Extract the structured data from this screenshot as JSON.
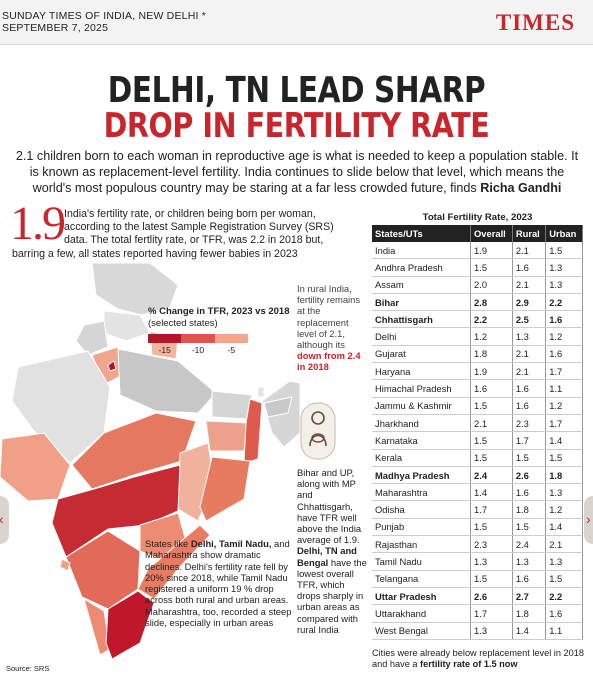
{
  "masthead": {
    "date_line1": "SUNDAY TIMES OF INDIA, NEW DELHI *",
    "date_line2": "SEPTEMBER 7, 2025",
    "brand": "TIMES"
  },
  "headline": {
    "line1": "DELHI, TN LEAD SHARP",
    "line2": "DROP IN FERTILITY RATE"
  },
  "intro": {
    "text": "2.1 children born to each woman in reproductive age is what is needed to keep a population stable. It is known as replacement-level fertility. India continues to slide below that level, which means the world's most populous country may be staring at a far less crowded future, finds",
    "author": "Richa Gandhi"
  },
  "lead": {
    "big_number": "1.9",
    "line1": "India's fertility rate, or children being born per woman,",
    "line2": "according to the latest Sample Registration Survey (SRS)",
    "line3": "data. The total fertlity rate, or TFR, was 2.2 in 2018 but,",
    "line4": "barring a few, all states reported having fewer babies in 2023"
  },
  "legend": {
    "title": "% Change in TFR, 2023 vs 2018",
    "subtitle": "(selected states)",
    "ticks": [
      "-15",
      "-10",
      "-5"
    ],
    "colors": [
      "#b3162a",
      "#e0534a",
      "#f4a58c"
    ]
  },
  "notes": {
    "rural_pre": "In rural India, fertility remains at the replacement level of 2.1, although its",
    "rural_bold": "down from 2.4 in 2018",
    "states_p1": "Bihar and UP, along with MP and Chhattisgarh, have TFR well above the India average of 1.9.",
    "states_bold": "Delhi, TN and Bengal",
    "states_p2": "have the lowest overall TFR, which drops sharply in urban areas as compared with rural India",
    "decline_p1": "States like",
    "decline_bold": "Delhi, Tamil Nadu,",
    "decline_p2": "and Maharashtra show dramatic declines. Delhi's fertility rate fell by 20% since 2018, while Tamil Nadu registered a uniform 19 % drop across both rural and urban areas. Maharashtra, too, recorded a steep slide, especially in urban areas"
  },
  "source": "Source: SRS",
  "table": {
    "title": "Total Fertility Rate, 2023",
    "headers": [
      "States/UTs",
      "Overall",
      "Rural",
      "Urban"
    ],
    "rows": [
      {
        "state": "India",
        "overall": "1.9",
        "rural": "2.1",
        "urban": "1.5",
        "hl": false
      },
      {
        "state": "Andhra Pradesh",
        "overall": "1.5",
        "rural": "1.6",
        "urban": "1.3",
        "hl": false
      },
      {
        "state": "Assam",
        "overall": "2.0",
        "rural": "2.1",
        "urban": "1.3",
        "hl": false
      },
      {
        "state": "Bihar",
        "overall": "2.8",
        "rural": "2.9",
        "urban": "2.2",
        "hl": true
      },
      {
        "state": "Chhattisgarh",
        "overall": "2.2",
        "rural": "2.5",
        "urban": "1.6",
        "hl": true
      },
      {
        "state": "Delhi",
        "overall": "1.2",
        "rural": "1.3",
        "urban": "1.2",
        "hl": false
      },
      {
        "state": "Gujarat",
        "overall": "1.8",
        "rural": "2.1",
        "urban": "1.6",
        "hl": false
      },
      {
        "state": "Haryana",
        "overall": "1.9",
        "rural": "2.1",
        "urban": "1.7",
        "hl": false
      },
      {
        "state": "Himachal Pradesh",
        "overall": "1.6",
        "rural": "1.6",
        "urban": "1.1",
        "hl": false
      },
      {
        "state": "Jammu & Kashmir",
        "overall": "1.5",
        "rural": "1.6",
        "urban": "1.2",
        "hl": false
      },
      {
        "state": "Jharkhand",
        "overall": "2.1",
        "rural": "2.3",
        "urban": "1.7",
        "hl": false
      },
      {
        "state": "Karnataka",
        "overall": "1.5",
        "rural": "1.7",
        "urban": "1.4",
        "hl": false
      },
      {
        "state": "Kerala",
        "overall": "1.5",
        "rural": "1.5",
        "urban": "1.5",
        "hl": false
      },
      {
        "state": "Madhya Pradesh",
        "overall": "2.4",
        "rural": "2.6",
        "urban": "1.8",
        "hl": true
      },
      {
        "state": "Maharashtra",
        "overall": "1.4",
        "rural": "1.6",
        "urban": "1.3",
        "hl": false
      },
      {
        "state": "Odisha",
        "overall": "1.7",
        "rural": "1.8",
        "urban": "1.2",
        "hl": false
      },
      {
        "state": "Punjab",
        "overall": "1.5",
        "rural": "1.5",
        "urban": "1.4",
        "hl": false
      },
      {
        "state": "Rajasthan",
        "overall": "2.3",
        "rural": "2.4",
        "urban": "2.1",
        "hl": false
      },
      {
        "state": "Tamil Nadu",
        "overall": "1.3",
        "rural": "1.3",
        "urban": "1.3",
        "hl": false
      },
      {
        "state": "Telangana",
        "overall": "1.5",
        "rural": "1.6",
        "urban": "1.5",
        "hl": false
      },
      {
        "state": "Uttar Pradesh",
        "overall": "2.6",
        "rural": "2.7",
        "urban": "2.2",
        "hl": true
      },
      {
        "state": "Uttarakhand",
        "overall": "1.7",
        "rural": "1.8",
        "urban": "1.6",
        "hl": false
      },
      {
        "state": "West Bengal",
        "overall": "1.3",
        "rural": "1.4",
        "urban": "1.1",
        "hl": false
      }
    ],
    "footer_text": "Cities were already below replacement level in 2018 and have a",
    "footer_bold": "fertility rate of 1.5 now"
  },
  "colors": {
    "accent": "#c8252c",
    "table_header": "#222222"
  }
}
